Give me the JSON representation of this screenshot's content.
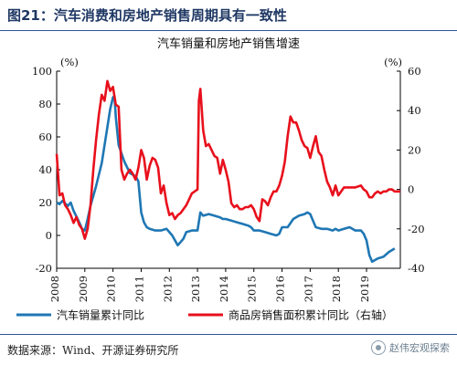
{
  "figure": {
    "title": "图21：汽车消费和房地产销售周期具有一致性"
  },
  "source": {
    "text": "数据来源：Wind、开源证券研究所",
    "watermark": "赵伟宏观探索"
  },
  "colors": {
    "left_series": "#1f77b4",
    "right_series": "#e8101c",
    "header_rule": "#2f5597"
  },
  "chart_data": {
    "type": "line",
    "title": "汽车销量和房地产销售增速",
    "grid": false,
    "legend_placement": "bottom",
    "x_range": [
      2008.0,
      2020.2
    ],
    "x_ticks": [
      2008,
      2009,
      2010,
      2011,
      2012,
      2013,
      2014,
      2015,
      2016,
      2017,
      2018,
      2019
    ],
    "x_tick_labels": [
      "2008",
      "2009",
      "2010",
      "2011",
      "2012",
      "2013",
      "2014",
      "2015",
      "2016",
      "2017",
      "2018",
      "2019"
    ],
    "y_left": {
      "unit": "(%)",
      "ylim": [
        -20,
        100
      ],
      "ticks": [
        -20,
        0,
        20,
        40,
        60,
        80,
        100
      ]
    },
    "y_right": {
      "unit": "(%)",
      "ylim": [
        -40,
        60
      ],
      "ticks": [
        -40,
        -20,
        0,
        20,
        40,
        60
      ]
    },
    "series": [
      {
        "name": "汽车销量累计同比",
        "axis": "left",
        "color": "#1f77b4",
        "x": [
          2008.0,
          2008.1,
          2008.2,
          2008.4,
          2008.5,
          2008.6,
          2008.8,
          2008.9,
          2009.0,
          2009.1,
          2009.2,
          2009.4,
          2009.6,
          2009.8,
          2009.9,
          2010.0,
          2010.05,
          2010.1,
          2010.2,
          2010.4,
          2010.6,
          2010.8,
          2010.9,
          2011.0,
          2011.1,
          2011.2,
          2011.3,
          2011.5,
          2011.7,
          2011.9,
          2012.0,
          2012.1,
          2012.3,
          2012.5,
          2012.6,
          2012.8,
          2012.9,
          2013.0,
          2013.1,
          2013.2,
          2013.4,
          2013.6,
          2013.8,
          2013.9,
          2014.0,
          2014.2,
          2014.4,
          2014.6,
          2014.8,
          2014.9,
          2015.0,
          2015.2,
          2015.4,
          2015.6,
          2015.8,
          2015.9,
          2016.0,
          2016.2,
          2016.4,
          2016.6,
          2016.8,
          2016.9,
          2017.0,
          2017.2,
          2017.4,
          2017.6,
          2017.8,
          2017.9,
          2018.0,
          2018.2,
          2018.4,
          2018.6,
          2018.8,
          2018.9,
          2019.0,
          2019.1,
          2019.2,
          2019.4,
          2019.6,
          2019.8,
          2020.0
        ],
        "values": [
          20,
          19,
          21,
          18,
          20,
          15,
          8,
          4,
          3,
          10,
          18,
          30,
          44,
          66,
          77,
          84,
          85,
          72,
          55,
          45,
          38,
          36,
          33,
          14,
          8,
          5,
          4,
          3,
          3,
          4,
          2,
          0,
          -6,
          -2,
          2,
          3,
          3,
          3,
          14,
          12,
          13,
          12,
          11,
          10,
          10,
          9,
          8,
          7,
          6,
          5,
          3,
          3,
          2,
          1,
          0,
          1,
          5,
          5,
          10,
          12,
          13,
          14,
          13,
          5,
          4,
          4,
          3,
          4,
          3,
          4,
          5,
          3,
          3,
          1,
          -3,
          -12,
          -16,
          -14,
          -13,
          -10,
          -8
        ]
      },
      {
        "name": "商品房销售面积累计同比（右轴）",
        "axis": "right",
        "color": "#e8101c",
        "x": [
          2008.0,
          2008.05,
          2008.1,
          2008.2,
          2008.3,
          2008.4,
          2008.5,
          2008.6,
          2008.7,
          2008.8,
          2008.9,
          2009.0,
          2009.1,
          2009.2,
          2009.3,
          2009.4,
          2009.5,
          2009.6,
          2009.7,
          2009.8,
          2009.9,
          2010.0,
          2010.1,
          2010.2,
          2010.3,
          2010.4,
          2010.5,
          2010.6,
          2010.7,
          2010.8,
          2010.9,
          2011.0,
          2011.1,
          2011.2,
          2011.3,
          2011.4,
          2011.5,
          2011.6,
          2011.7,
          2011.8,
          2011.9,
          2012.0,
          2012.1,
          2012.2,
          2012.3,
          2012.4,
          2012.5,
          2012.6,
          2012.7,
          2012.8,
          2012.9,
          2013.0,
          2013.05,
          2013.1,
          2013.2,
          2013.3,
          2013.4,
          2013.5,
          2013.6,
          2013.7,
          2013.8,
          2013.9,
          2014.0,
          2014.1,
          2014.2,
          2014.3,
          2014.4,
          2014.5,
          2014.6,
          2014.7,
          2014.8,
          2014.9,
          2015.0,
          2015.1,
          2015.2,
          2015.3,
          2015.4,
          2015.5,
          2015.6,
          2015.7,
          2015.8,
          2015.9,
          2016.0,
          2016.1,
          2016.2,
          2016.3,
          2016.4,
          2016.5,
          2016.6,
          2016.7,
          2016.8,
          2016.9,
          2017.0,
          2017.1,
          2017.2,
          2017.3,
          2017.4,
          2017.5,
          2017.6,
          2017.7,
          2017.8,
          2017.9,
          2018.0,
          2018.2,
          2018.4,
          2018.6,
          2018.8,
          2018.9,
          2019.0,
          2019.1,
          2019.2,
          2019.3,
          2019.4,
          2019.5,
          2019.6,
          2019.7,
          2019.8,
          2019.9,
          2020.0,
          2020.2
        ],
        "values": [
          18,
          8,
          -3,
          -2,
          -8,
          -10,
          -13,
          -17,
          -14,
          -18,
          -20,
          -25,
          -20,
          -8,
          10,
          25,
          38,
          48,
          45,
          55,
          50,
          52,
          43,
          42,
          10,
          5,
          8,
          10,
          8,
          5,
          11,
          20,
          16,
          5,
          12,
          16,
          15,
          11,
          -2,
          2,
          -7,
          -13,
          -12,
          -15,
          -13,
          -12,
          -10,
          -8,
          -5,
          -2,
          -1,
          0,
          45,
          51,
          30,
          22,
          23,
          20,
          17,
          16,
          8,
          15,
          10,
          4,
          -7,
          -9,
          -8,
          -10,
          -10,
          -9,
          -9,
          -8,
          -10,
          -14,
          -16,
          -5,
          -6,
          -8,
          -4,
          -1,
          -1,
          2,
          7,
          14,
          27,
          37,
          34,
          34,
          30,
          25,
          22,
          21,
          16,
          22,
          27,
          19,
          17,
          10,
          4,
          1,
          -3,
          2,
          -3,
          1,
          1,
          1,
          2,
          0,
          -1,
          -4,
          -4,
          -2,
          -1,
          -2,
          -1,
          -1,
          0,
          0,
          -1,
          -1
        ]
      }
    ]
  }
}
